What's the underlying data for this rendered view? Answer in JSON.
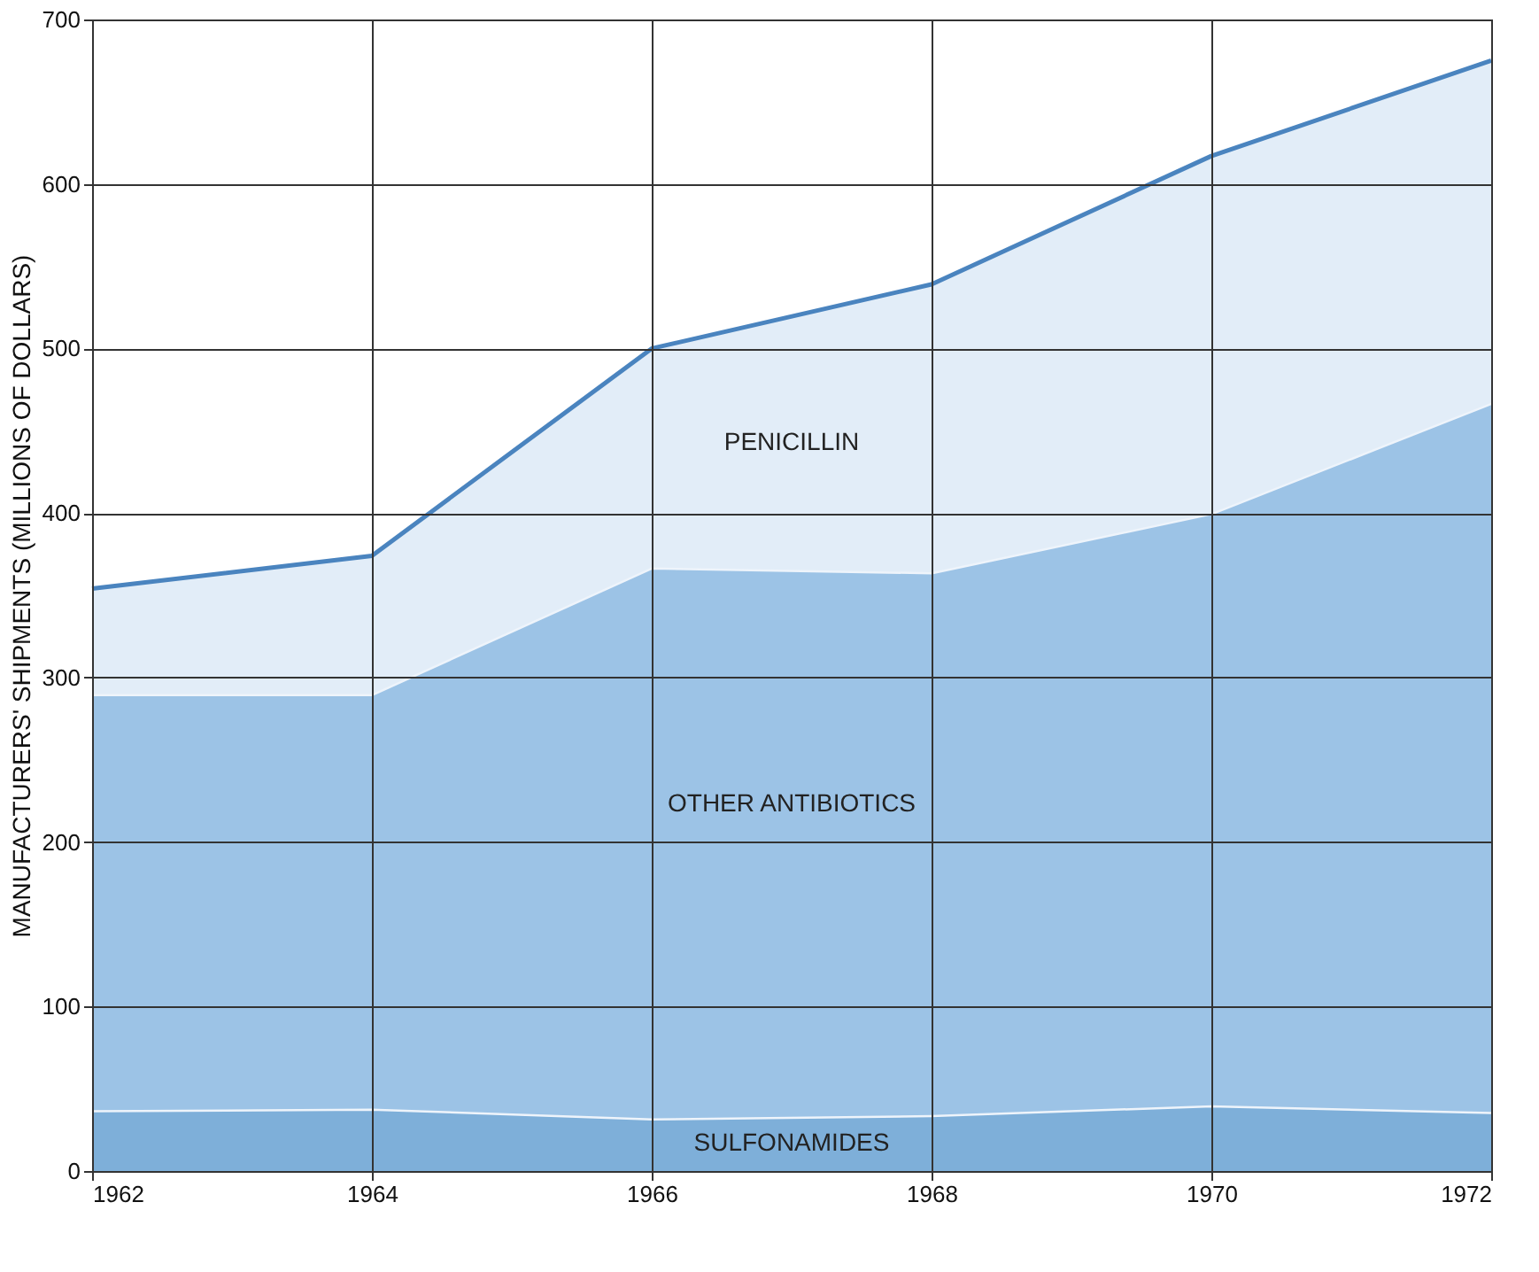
{
  "chart_data": {
    "type": "area",
    "stacked": true,
    "ylabel": "MANUFACTURERS' SHIPMENTS (MILLIONS OF DOLLARS)",
    "x": [
      1962,
      1964,
      1966,
      1968,
      1970,
      1972
    ],
    "xlim": [
      1962,
      1972
    ],
    "xticks": [
      1962,
      1964,
      1966,
      1968,
      1970,
      1972
    ],
    "ylim": [
      0,
      700
    ],
    "yticks": [
      0,
      100,
      200,
      300,
      400,
      500,
      600,
      700
    ],
    "grid": true,
    "series": [
      {
        "name": "SULFONAMIDES",
        "color": "#7eafd9",
        "values": [
          37,
          38,
          32,
          34,
          40,
          36
        ]
      },
      {
        "name": "OTHER ANTIBIOTICS",
        "color": "#9cc3e6",
        "values": [
          253,
          252,
          335,
          330,
          360,
          431
        ]
      },
      {
        "name": "PENICILLIN",
        "color": "#e2edf8",
        "values": [
          64,
          84,
          133,
          175,
          217,
          208
        ]
      }
    ]
  }
}
